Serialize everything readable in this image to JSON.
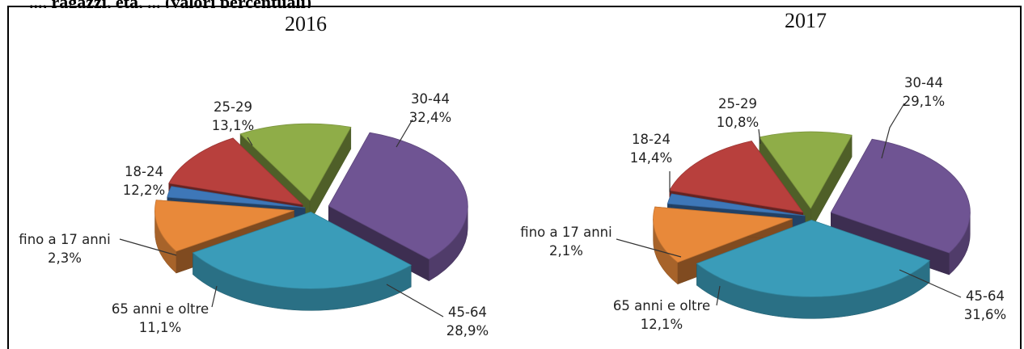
{
  "header": {
    "text": "..., ragazzi, età, ... (valori percentuali)"
  },
  "chart_data": [
    {
      "type": "pie",
      "title": "2016",
      "unit": "%",
      "slices": [
        {
          "label": "30-44",
          "value": 32.4,
          "display": "32,4%",
          "color": "#6f5493"
        },
        {
          "label": "45-64",
          "value": 28.9,
          "display": "28,9%",
          "color": "#3a9cb9"
        },
        {
          "label": "65 anni e oltre",
          "value": 11.1,
          "display": "11,1%",
          "color": "#e8893a"
        },
        {
          "label": "fino a 17 anni",
          "value": 2.3,
          "display": "2,3%",
          "color": "#3e77b8"
        },
        {
          "label": "18-24",
          "value": 12.2,
          "display": "12,2%",
          "color": "#b8403d"
        },
        {
          "label": "25-29",
          "value": 13.1,
          "display": "13,1%",
          "color": "#8fad48"
        }
      ]
    },
    {
      "type": "pie",
      "title": "2017",
      "unit": "%",
      "slices": [
        {
          "label": "30-44",
          "value": 29.1,
          "display": "29,1%",
          "color": "#6f5493"
        },
        {
          "label": "45-64",
          "value": 31.6,
          "display": "31,6%",
          "color": "#3a9cb9"
        },
        {
          "label": "65 anni e oltre",
          "value": 12.1,
          "display": "12,1%",
          "color": "#e8893a"
        },
        {
          "label": "fino a 17 anni",
          "value": 2.1,
          "display": "2,1%",
          "color": "#3e77b8"
        },
        {
          "label": "18-24",
          "value": 14.4,
          "display": "14,4%",
          "color": "#b8403d"
        },
        {
          "label": "25-29",
          "value": 10.8,
          "display": "10,8%",
          "color": "#8fad48"
        }
      ]
    }
  ]
}
